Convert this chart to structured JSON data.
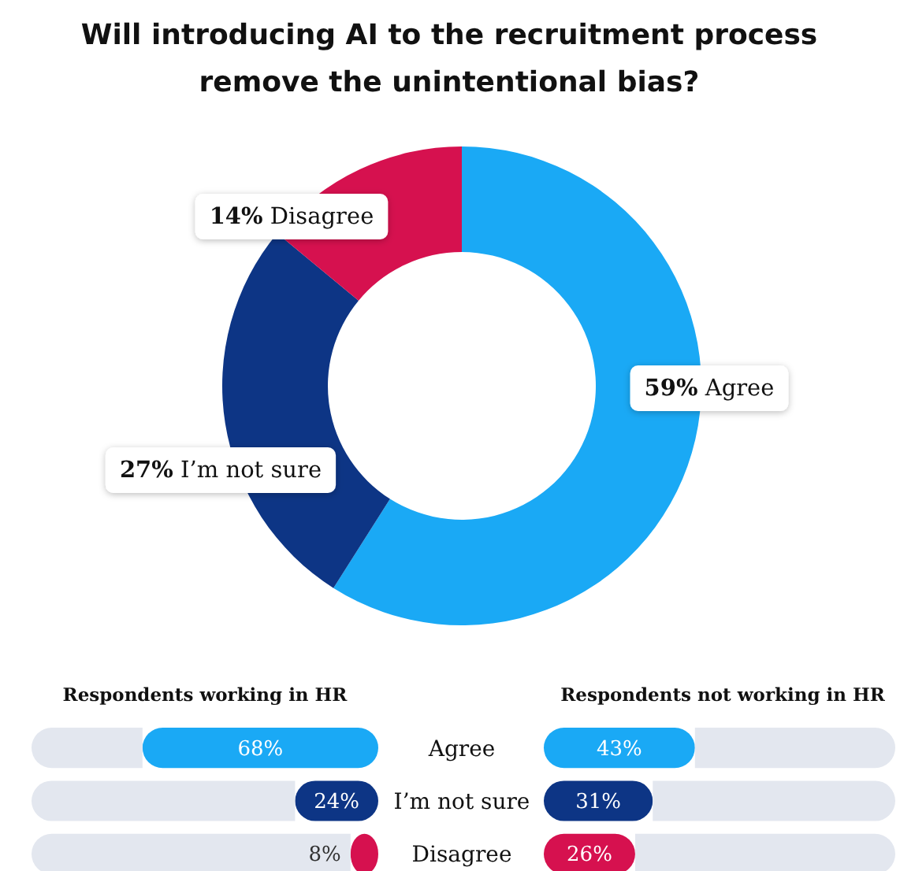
{
  "chart_data": [
    {
      "type": "donut",
      "title": "Will introducing AI to the recruitment process remove the unintentional bias?",
      "categories": [
        "Agree",
        "I’m not sure",
        "Disagree"
      ],
      "values": [
        59,
        27,
        14
      ],
      "colors": [
        "#1aa9f5",
        "#0d3585",
        "#d6114f"
      ],
      "value_labels": [
        "59%",
        "27%",
        "14%"
      ]
    },
    {
      "type": "bar",
      "orientation": "horizontal",
      "stacked": true,
      "title": "Respondents working in HR",
      "categories": [
        "Agree",
        "I’m not sure",
        "Disagree"
      ],
      "series": [
        {
          "colors": [
            "#1aa9f5",
            "#0d3585",
            "#d6114f"
          ],
          "values": [
            68,
            24,
            8
          ],
          "value_labels": [
            "68%",
            "24%",
            "8%"
          ]
        },
        {
          "color": "#e3e7ef",
          "values": [
            32,
            76,
            92
          ]
        }
      ],
      "xlim": [
        100,
        0
      ]
    },
    {
      "type": "bar",
      "orientation": "horizontal",
      "stacked": true,
      "title": "Respondents not working in HR",
      "categories": [
        null,
        null,
        null
      ],
      "series": [
        {
          "colors": [
            "#1aa9f5",
            "#0d3585",
            "#d6114f"
          ],
          "values": [
            43,
            31,
            26
          ],
          "value_labels": [
            "43%",
            "31%",
            "26%"
          ]
        },
        {
          "color": "#e3e7ef",
          "values": [
            57,
            69,
            74
          ]
        }
      ],
      "xlim": [
        0,
        100
      ]
    }
  ]
}
